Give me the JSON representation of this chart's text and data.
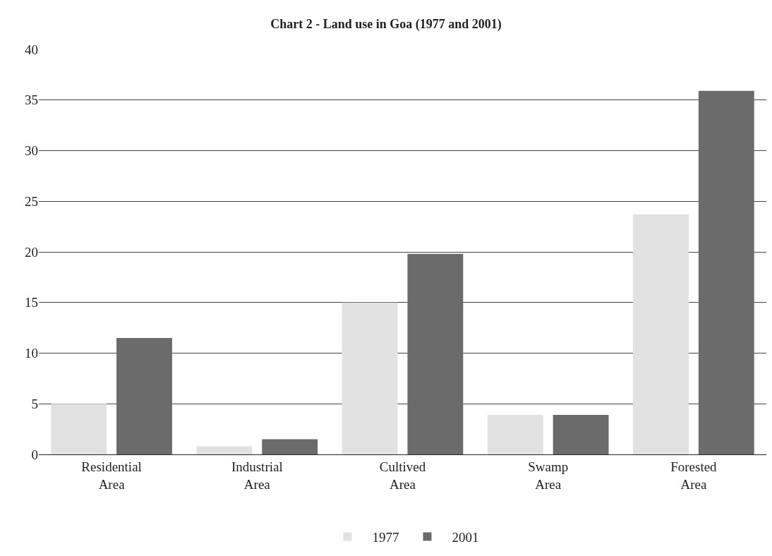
{
  "chart_data": {
    "type": "bar",
    "title": "Chart 2 - Land use in Goa (1977 and 2001)",
    "categories": [
      "Residential Area",
      "Industrial Area",
      "Cultived Area",
      "Swamp Area",
      "Forested Area"
    ],
    "series": [
      {
        "name": "1977",
        "color": "#e2e2e2",
        "values": [
          5.0,
          0.8,
          15.0,
          3.9,
          23.7
        ]
      },
      {
        "name": "2001",
        "color": "#6b6b6b",
        "values": [
          11.5,
          1.5,
          19.8,
          3.9,
          35.9
        ]
      }
    ],
    "ylim": [
      0,
      40
    ],
    "yticks": [
      0,
      5,
      10,
      15,
      20,
      25,
      30,
      35,
      40
    ],
    "grid": "y",
    "legend": "bottom"
  }
}
